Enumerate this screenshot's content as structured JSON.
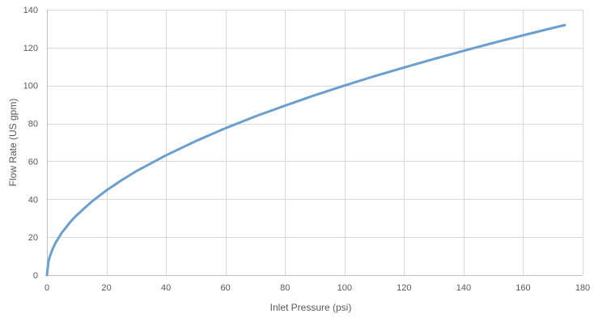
{
  "chart_data": {
    "type": "line",
    "title": "",
    "xlabel": "Inlet Pressure (psi)",
    "ylabel": "Flow Rate (US gpm)",
    "xlim": [
      0,
      180
    ],
    "ylim": [
      0,
      140
    ],
    "x_ticks": [
      0,
      20,
      40,
      60,
      80,
      100,
      120,
      140,
      160,
      180
    ],
    "y_ticks": [
      0,
      20,
      40,
      60,
      80,
      100,
      120,
      140
    ],
    "grid": true,
    "legend": "none",
    "series": [
      {
        "color": "#6a9fcf",
        "x": [
          0,
          0.5,
          1,
          2,
          3,
          5,
          8,
          10,
          15,
          20,
          25,
          30,
          40,
          50,
          60,
          70,
          80,
          90,
          100,
          110,
          120,
          130,
          140,
          150,
          160,
          170,
          174
        ],
        "y": [
          0,
          7.1,
          10,
          14.1,
          17.3,
          22.4,
          28.3,
          31.6,
          38.7,
          44.7,
          50,
          54.8,
          63.2,
          70.7,
          77.5,
          83.7,
          89.4,
          94.9,
          100,
          104.9,
          109.5,
          114,
          118.3,
          122.5,
          126.5,
          130.4,
          131.9
        ]
      }
    ]
  }
}
